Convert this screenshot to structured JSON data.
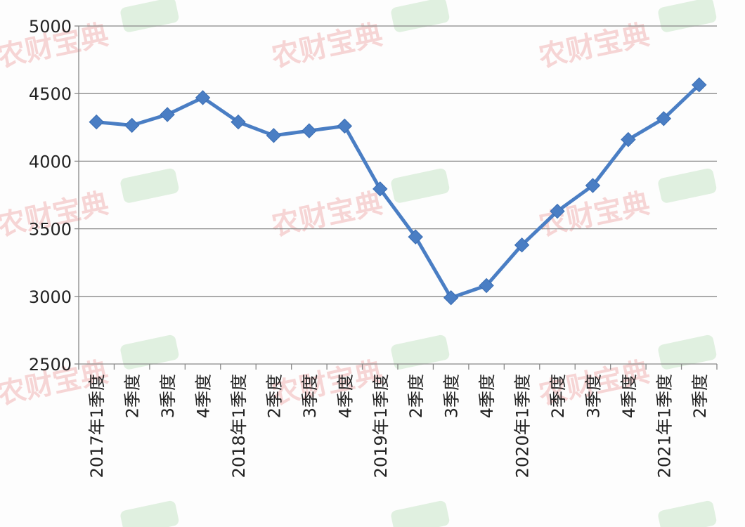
{
  "chart_data": {
    "type": "line",
    "title": "",
    "xlabel": "",
    "ylabel": "",
    "ylim": [
      2500,
      5000
    ],
    "yticks": [
      2500,
      3000,
      3500,
      4000,
      4500,
      5000
    ],
    "grid": true,
    "legend": "none",
    "categories": [
      "2017年1季度",
      "2季度",
      "3季度",
      "4季度",
      "2018年1季度",
      "2季度",
      "3季度",
      "4季度",
      "2019年1季度",
      "2季度",
      "3季度",
      "4季度",
      "2020年1季度",
      "2季度",
      "3季度",
      "4季度",
      "2021年1季度",
      "2季度"
    ],
    "series": [
      {
        "values": [
          4290,
          4265,
          4345,
          4470,
          4290,
          4190,
          4225,
          4260,
          3795,
          3440,
          2990,
          3080,
          3380,
          3630,
          3820,
          4160,
          4315,
          4565
        ],
        "color": "#4a7ec4"
      }
    ]
  },
  "watermark": {
    "text": "农财宝典",
    "color": "#e24a4a",
    "badge_color": "#5cb85c"
  }
}
